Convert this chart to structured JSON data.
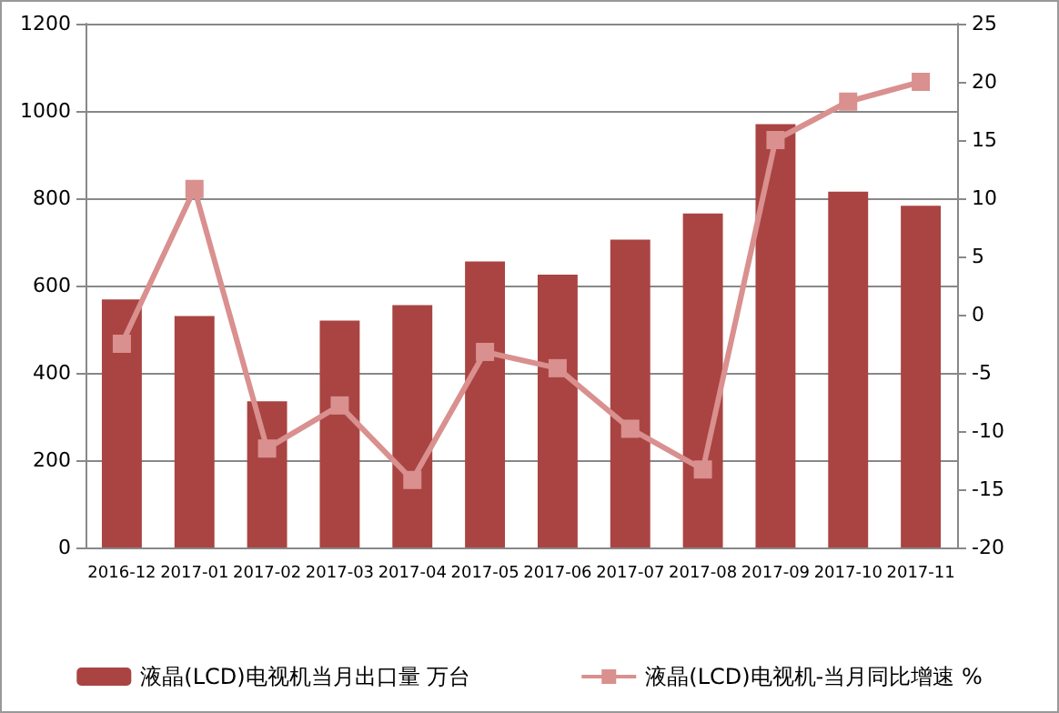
{
  "chart_data": {
    "type": "bar",
    "categories": [
      "2016-12",
      "2017-01",
      "2017-02",
      "2017-03",
      "2017-04",
      "2017-05",
      "2017-06",
      "2017-07",
      "2017-08",
      "2017-09",
      "2017-10",
      "2017-11"
    ],
    "series": [
      {
        "name": "液晶(LCD)电视机当月出口量 万台",
        "color": "#a94442",
        "values": [
          568,
          530,
          335,
          520,
          555,
          655,
          625,
          705,
          765,
          970,
          815,
          783
        ]
      },
      {
        "name": "液晶(LCD)电视机-当月同比增速 %",
        "type": "line",
        "axis": "y2",
        "color": "#d9908f",
        "marker": "square",
        "values": [
          -2.5,
          10.8,
          -11.5,
          -7.8,
          -14.2,
          -3.2,
          -4.6,
          -9.8,
          -13.3,
          15,
          18.3,
          20
        ]
      }
    ],
    "ylim": [
      0,
      1200
    ],
    "yticks": [
      0,
      200,
      400,
      600,
      800,
      1000,
      1200
    ],
    "y2lim": [
      -20,
      25
    ],
    "y2ticks": [
      -20,
      -15,
      -10,
      -5,
      0,
      5,
      10,
      15,
      20,
      25
    ],
    "grid": "y",
    "legend": "bottom"
  }
}
